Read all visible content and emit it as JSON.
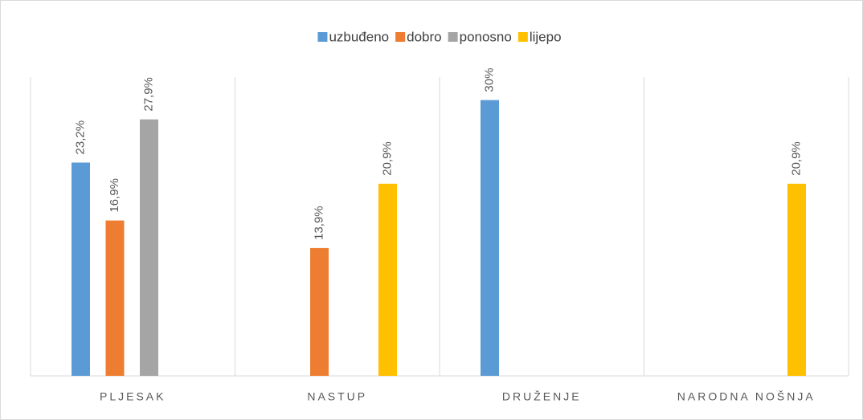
{
  "chart_data": {
    "type": "bar",
    "categories": [
      "PLJESAK",
      "NASTUP",
      "DRUŽENJE",
      "NARODNA NOŠNJA"
    ],
    "series": [
      {
        "name": "uzbuđeno",
        "color": "#5b9bd5",
        "values": [
          23.2,
          null,
          30,
          null
        ],
        "value_labels": [
          "23,2%",
          null,
          "30%",
          null
        ]
      },
      {
        "name": "dobro",
        "color": "#ed7d31",
        "values": [
          16.9,
          13.9,
          null,
          null
        ],
        "value_labels": [
          "16,9%",
          "13,9%",
          null,
          null
        ]
      },
      {
        "name": "ponosno",
        "color": "#a5a5a5",
        "values": [
          27.9,
          null,
          null,
          null
        ],
        "value_labels": [
          "27,9%",
          null,
          null,
          null
        ]
      },
      {
        "name": "lijepo",
        "color": "#ffc000",
        "values": [
          null,
          20.9,
          null,
          20.9
        ],
        "value_labels": [
          null,
          "20,9%",
          null,
          "20,9%"
        ]
      }
    ],
    "ylim": [
      0,
      32.5
    ],
    "legend": "top"
  }
}
